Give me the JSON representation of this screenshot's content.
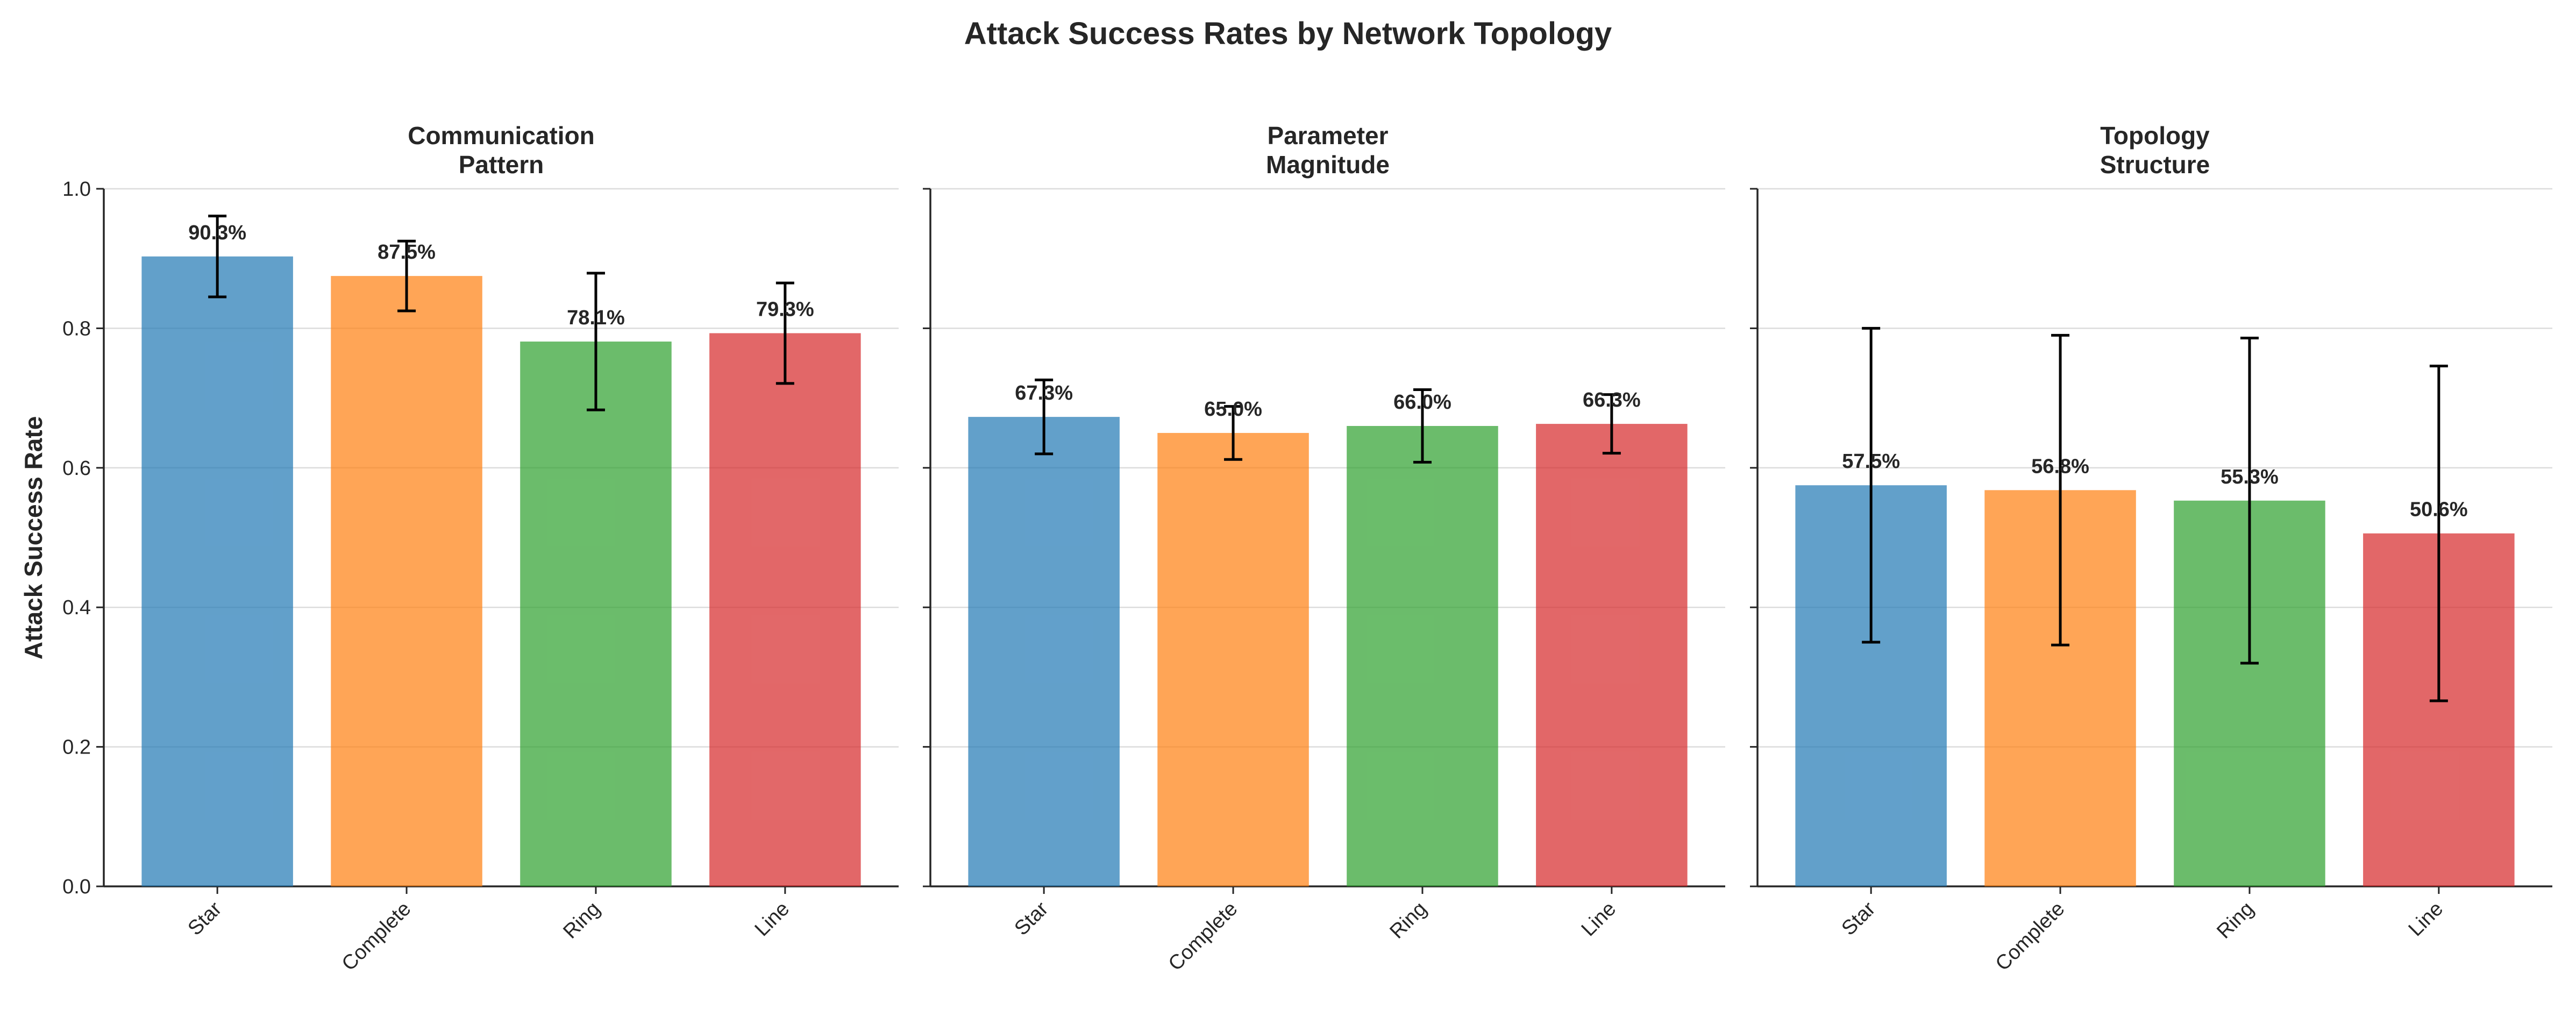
{
  "title": "Attack Success Rates by Network Topology",
  "ylabel": "Attack Success Rate",
  "chart_data": [
    {
      "type": "bar",
      "title": [
        "Communication",
        "Pattern"
      ],
      "categories": [
        "Star",
        "Complete",
        "Ring",
        "Line"
      ],
      "values": [
        0.903,
        0.875,
        0.781,
        0.793
      ],
      "error": [
        0.058,
        0.05,
        0.098,
        0.072
      ],
      "labels": [
        "90.3%",
        "87.5%",
        "78.1%",
        "79.3%"
      ],
      "ylim": [
        0,
        1
      ],
      "yticks": [
        "0.0",
        "0.2",
        "0.4",
        "0.6",
        "0.8",
        "1.0"
      ],
      "grid": true
    },
    {
      "type": "bar",
      "title": [
        "Parameter",
        "Magnitude"
      ],
      "categories": [
        "Star",
        "Complete",
        "Ring",
        "Line"
      ],
      "values": [
        0.673,
        0.65,
        0.66,
        0.663
      ],
      "error": [
        0.053,
        0.038,
        0.052,
        0.042
      ],
      "labels": [
        "67.3%",
        "65.0%",
        "66.0%",
        "66.3%"
      ],
      "ylim": [
        0,
        1
      ],
      "grid": true
    },
    {
      "type": "bar",
      "title": [
        "Topology",
        "Structure"
      ],
      "categories": [
        "Star",
        "Complete",
        "Ring",
        "Line"
      ],
      "values": [
        0.575,
        0.568,
        0.553,
        0.506
      ],
      "error": [
        0.225,
        0.222,
        0.233,
        0.24
      ],
      "labels": [
        "57.5%",
        "56.8%",
        "55.3%",
        "50.6%"
      ],
      "ylim": [
        0,
        1
      ],
      "grid": true
    }
  ],
  "colors": [
    "#1f77b4",
    "#ff7f0e",
    "#2ca02c",
    "#d62728"
  ]
}
